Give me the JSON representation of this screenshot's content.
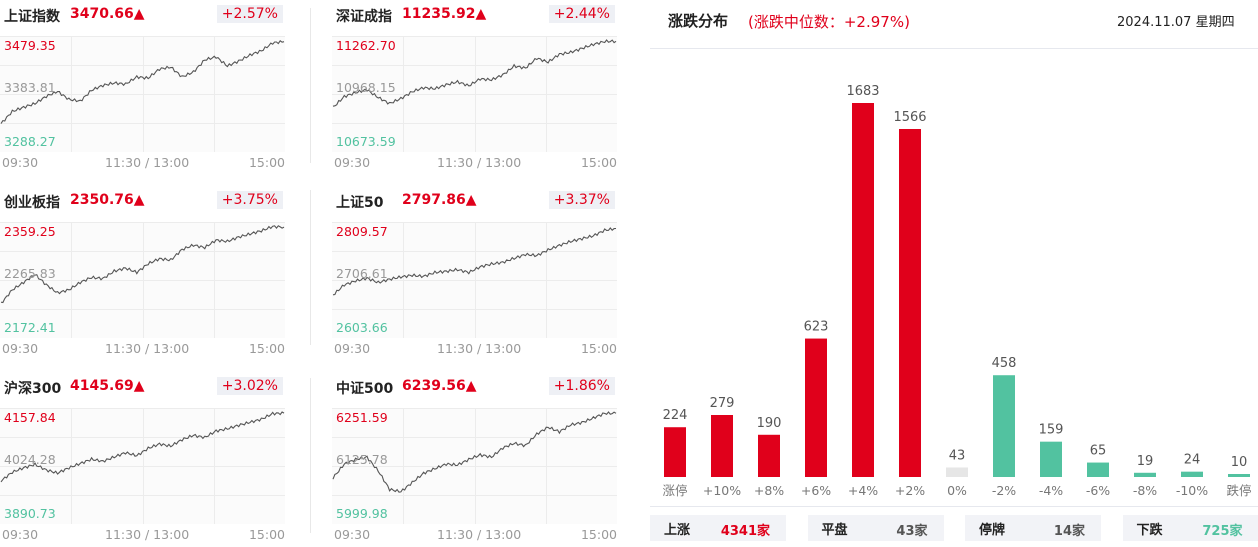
{
  "colors": {
    "up": "#e0001b",
    "down": "#52c2a0",
    "flat": "#e6e6e6",
    "line": "#555555"
  },
  "indices": [
    {
      "name": "上证指数",
      "price": "3470.66▲",
      "change": "+2.57%",
      "high": "3479.35",
      "mid": "3383.81",
      "low": "3288.27",
      "times": [
        "09:30",
        "11:30 / 13:00",
        "15:00"
      ],
      "series": [
        3335,
        3355,
        3362,
        3368,
        3380,
        3388,
        3375,
        3372,
        3390,
        3398,
        3402,
        3400,
        3412,
        3410,
        3425,
        3428,
        3412,
        3420,
        3440,
        3445,
        3430,
        3438,
        3448,
        3455,
        3468,
        3470
      ]
    },
    {
      "name": "深证成指",
      "price": "11235.92▲",
      "change": "+2.44%",
      "high": "11262.70",
      "mid": "10968.15",
      "low": "10673.59",
      "times": [
        "09:30",
        "11:30 / 13:00",
        "15:00"
      ],
      "series": [
        10900,
        10955,
        10975,
        10990,
        10950,
        10920,
        10945,
        10980,
        11000,
        10995,
        11015,
        11030,
        11010,
        11045,
        11040,
        11065,
        11110,
        11100,
        11150,
        11130,
        11170,
        11180,
        11200,
        11220,
        11235,
        11236
      ]
    },
    {
      "name": "创业板指",
      "price": "2350.76▲",
      "change": "+3.75%",
      "high": "2359.25",
      "mid": "2265.83",
      "low": "2172.41",
      "times": [
        "09:30",
        "11:30 / 13:00",
        "15:00"
      ],
      "series": [
        2228,
        2250,
        2262,
        2275,
        2258,
        2245,
        2250,
        2262,
        2270,
        2268,
        2280,
        2285,
        2278,
        2292,
        2300,
        2298,
        2315,
        2322,
        2318,
        2330,
        2328,
        2335,
        2340,
        2345,
        2352,
        2351
      ]
    },
    {
      "name": "上证50",
      "price": "2797.86▲",
      "change": "+3.37%",
      "high": "2809.57",
      "mid": "2706.61",
      "low": "2603.66",
      "times": [
        "09:30",
        "11:30 / 13:00",
        "15:00"
      ],
      "series": [
        2680,
        2698,
        2705,
        2710,
        2702,
        2708,
        2712,
        2715,
        2713,
        2720,
        2722,
        2725,
        2720,
        2730,
        2735,
        2738,
        2745,
        2752,
        2750,
        2760,
        2768,
        2775,
        2780,
        2785,
        2795,
        2798
      ]
    },
    {
      "name": "沪深300",
      "price": "4145.69▲",
      "change": "+3.02%",
      "high": "4157.84",
      "mid": "4024.28",
      "low": "3890.73",
      "times": [
        "09:30",
        "11:30 / 13:00",
        "15:00"
      ],
      "series": [
        3990,
        4010,
        4020,
        4028,
        4015,
        4008,
        4020,
        4030,
        4040,
        4035,
        4045,
        4055,
        4048,
        4065,
        4075,
        4070,
        4085,
        4095,
        4090,
        4105,
        4110,
        4118,
        4125,
        4132,
        4145,
        4146
      ]
    },
    {
      "name": "中证500",
      "price": "6239.56▲",
      "change": "+1.86%",
      "high": "6251.59",
      "mid": "6125.78",
      "low": "5999.98",
      "times": [
        "09:30",
        "11:30 / 13:00",
        "15:00"
      ],
      "series": [
        6100,
        6130,
        6140,
        6145,
        6115,
        6075,
        6070,
        6090,
        6110,
        6120,
        6130,
        6128,
        6140,
        6150,
        6145,
        6165,
        6175,
        6170,
        6195,
        6210,
        6200,
        6215,
        6220,
        6230,
        6240,
        6240
      ]
    }
  ],
  "distribution": {
    "title": "涨跌分布",
    "subtitle": "(涨跌中位数：+2.97%)",
    "date": "2024.11.07 星期四",
    "chart_data": {
      "type": "bar",
      "categories": [
        "涨停",
        "+10%",
        "+8%",
        "+6%",
        "+4%",
        "+2%",
        "0%",
        "-2%",
        "-4%",
        "-6%",
        "-8%",
        "-10%",
        "跌停"
      ],
      "values": [
        224,
        279,
        190,
        623,
        1683,
        1566,
        43,
        458,
        159,
        65,
        19,
        24,
        10
      ],
      "colors": [
        "up",
        "up",
        "up",
        "up",
        "up",
        "up",
        "flat",
        "down",
        "down",
        "down",
        "down",
        "down",
        "down"
      ]
    },
    "summary": [
      {
        "label": "上涨",
        "value": "4341家",
        "color": "up"
      },
      {
        "label": "平盘",
        "value": "43家",
        "color": "neutral"
      },
      {
        "label": "停牌",
        "value": "14家",
        "color": "neutral"
      },
      {
        "label": "下跌",
        "value": "725家",
        "color": "down"
      }
    ]
  }
}
